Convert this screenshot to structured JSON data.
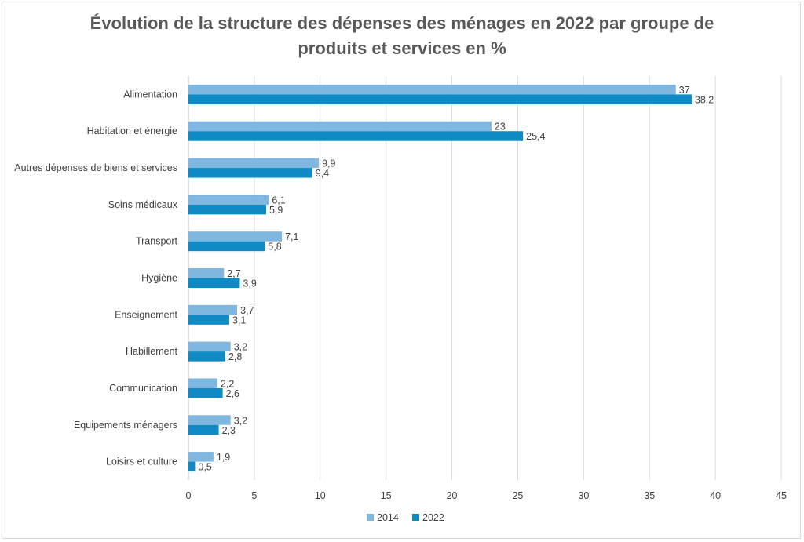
{
  "chart_data": {
    "type": "bar",
    "orientation": "horizontal",
    "title_line1": "Évolution de la structure des dépenses des ménages en 2022 par groupe de",
    "title_line2": "produits et services en %",
    "categories": [
      "Alimentation",
      "Habitation et énergie",
      "Autres dépenses de biens et services",
      "Soins médicaux",
      "Transport",
      "Hygiène",
      "Enseignement",
      "Habillement",
      "Communication",
      "Equipements ménagers",
      "Loisirs et culture"
    ],
    "series": [
      {
        "name": "2014",
        "color": "#7fb7e0",
        "values": [
          37,
          23,
          9.9,
          6.1,
          7.1,
          2.7,
          3.7,
          3.2,
          2.2,
          3.2,
          1.9
        ],
        "labels": [
          "37",
          "23",
          "9,9",
          "6,1",
          "7,1",
          "2,7",
          "3,7",
          "3,2",
          "2,2",
          "3,2",
          "1,9"
        ]
      },
      {
        "name": "2022",
        "color": "#0f8ac2",
        "values": [
          38.2,
          25.4,
          9.4,
          5.9,
          5.8,
          3.9,
          3.1,
          2.8,
          2.6,
          2.3,
          0.5
        ],
        "labels": [
          "38,2",
          "25,4",
          "9,4",
          "5,9",
          "5,8",
          "3,9",
          "3,1",
          "2,8",
          "2,6",
          "2,3",
          "0,5"
        ]
      }
    ],
    "xlim": [
      0,
      45
    ],
    "xticks": [
      "0",
      "5",
      "10",
      "15",
      "20",
      "25",
      "30",
      "35",
      "40",
      "45"
    ],
    "grid": true,
    "legend_position": "bottom"
  }
}
